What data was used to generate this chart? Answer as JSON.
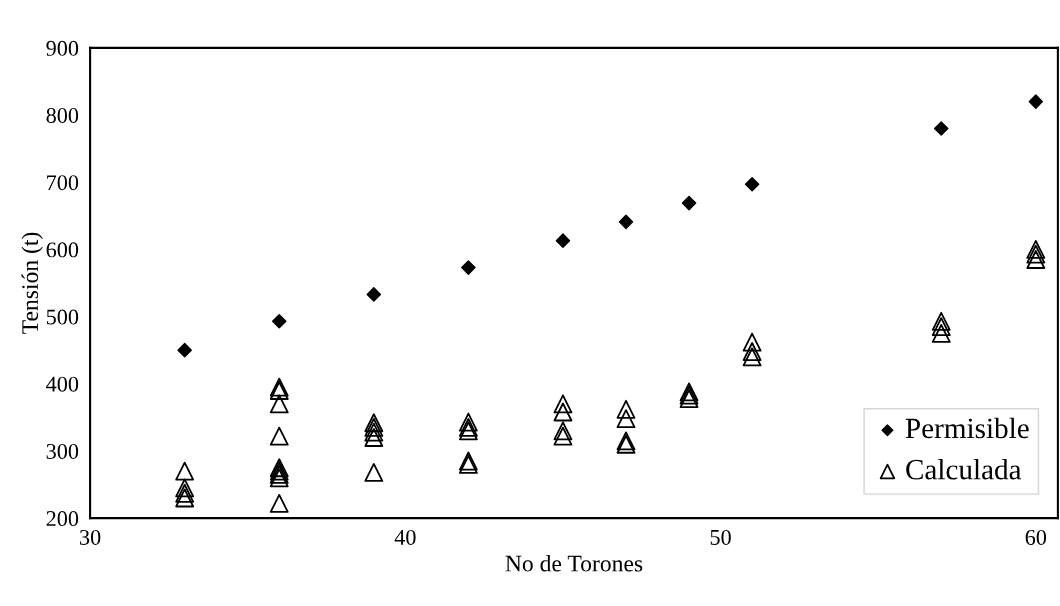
{
  "chart_data": {
    "type": "scatter",
    "xlabel": "No de Torones",
    "ylabel": "Tensión (t)",
    "xlim": [
      30,
      60.7
    ],
    "xticks": [
      30,
      40,
      50,
      60
    ],
    "ylim": [
      200,
      900
    ],
    "yticks": [
      200,
      300,
      400,
      500,
      600,
      700,
      800,
      900
    ],
    "grid": false,
    "legend": "bottom right",
    "series": [
      {
        "name": "Permisible",
        "color": "#000000",
        "marker": "diamond",
        "x": [
          33,
          36,
          39,
          42,
          45,
          47,
          49,
          51,
          57,
          60
        ],
        "values": [
          450,
          493,
          533,
          573,
          613,
          641,
          669,
          697,
          780,
          820
        ]
      },
      {
        "name": "Calculada",
        "color": "#000000",
        "marker": "triangle",
        "x": [
          33,
          33,
          33,
          33,
          36,
          36,
          36,
          36,
          36,
          36,
          36,
          36,
          36,
          39,
          39,
          39,
          39,
          39,
          42,
          42,
          42,
          42,
          42,
          45,
          45,
          45,
          45,
          47,
          47,
          47,
          47,
          49,
          49,
          49,
          51,
          51,
          51,
          57,
          57,
          57,
          60,
          60,
          60
        ],
        "values": [
          270,
          245,
          237,
          230,
          395,
          390,
          370,
          322,
          275,
          270,
          265,
          260,
          222,
          342,
          335,
          328,
          320,
          268,
          343,
          335,
          330,
          285,
          280,
          370,
          358,
          330,
          322,
          362,
          348,
          315,
          310,
          388,
          383,
          378,
          462,
          448,
          440,
          493,
          485,
          475,
          600,
          593,
          585
        ]
      }
    ]
  }
}
